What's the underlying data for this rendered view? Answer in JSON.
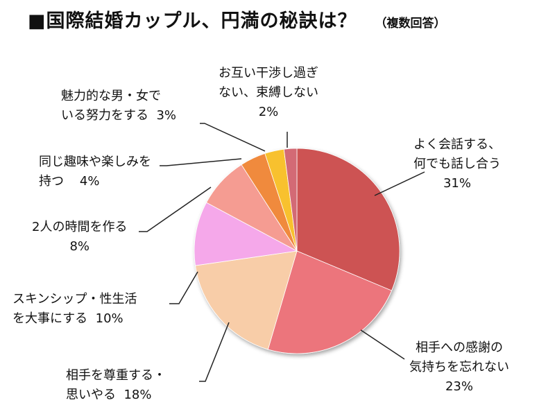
{
  "chart_data": {
    "type": "pie",
    "title": "■国際結婚カップル、円満の秘訣は？",
    "subtitle": "（複数回答）",
    "slices": [
      {
        "label_lines": [
          "よく会話する、",
          "何でも話し合う"
        ],
        "pct_text": "31%",
        "value": 31,
        "color": "#cd5352"
      },
      {
        "label_lines": [
          "相手への感謝の",
          "気持ちを忘れない"
        ],
        "pct_text": "23%",
        "value": 23,
        "color": "#ec757c"
      },
      {
        "label_lines": [
          "相手を尊重する・",
          "思いやる"
        ],
        "pct_text": "18%",
        "value": 18,
        "color": "#f8cda8"
      },
      {
        "label_lines": [
          "スキンシップ・性生活",
          "を大事にする"
        ],
        "pct_text": "10%",
        "value": 10,
        "color": "#f5a8ea"
      },
      {
        "label_lines": [
          "2人の時間を作る"
        ],
        "pct_text": "8%",
        "value": 8,
        "color": "#f59c92"
      },
      {
        "label_lines": [
          "同じ趣味や楽しみを",
          "持つ"
        ],
        "pct_text": "4%",
        "value": 4,
        "color": "#f08a3e"
      },
      {
        "label_lines": [
          "魅力的な男・女で",
          "いる努力をする"
        ],
        "pct_text": "3%",
        "value": 3,
        "color": "#f8c12d"
      },
      {
        "label_lines": [
          "お互い干渉し過ぎ",
          "ない、束縛しない"
        ],
        "pct_text": "2%",
        "value": 2,
        "color": "#d36b75"
      }
    ]
  }
}
